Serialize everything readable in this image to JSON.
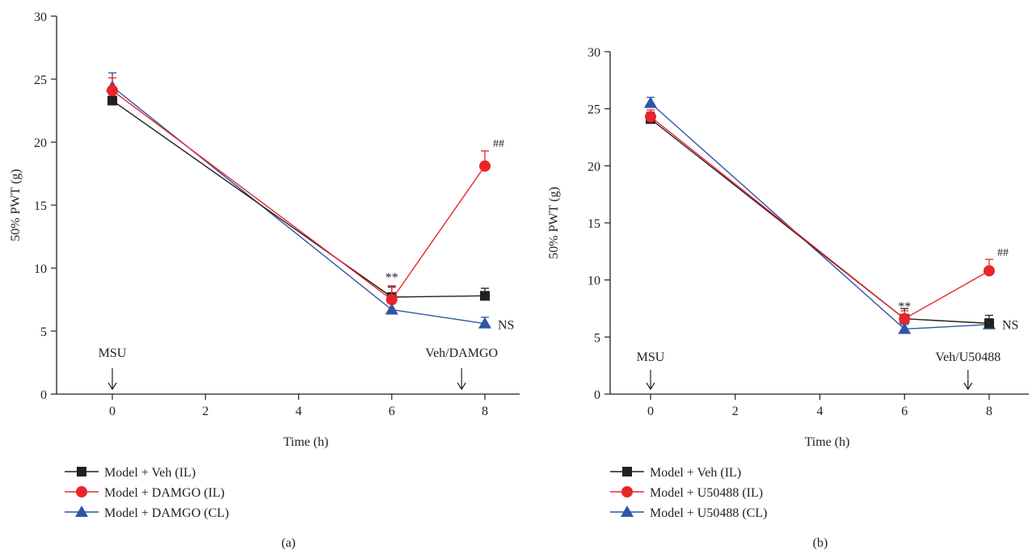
{
  "chart_data": [
    {
      "type": "line",
      "panel_label": "(a)",
      "xlabel": "Time (h)",
      "ylabel": "50% PWT (g)",
      "xlim": [
        -1,
        9
      ],
      "ylim": [
        0,
        30
      ],
      "x_ticks": [
        0,
        2,
        4,
        6,
        8
      ],
      "y_ticks": [
        0,
        5,
        10,
        15,
        20,
        25,
        30
      ],
      "x_tick_labels": [
        "0",
        "2",
        "4",
        "6",
        "8"
      ],
      "y_tick_labels": [
        "0",
        "5",
        "10",
        "15",
        "20",
        "25",
        "30"
      ],
      "grid": false,
      "legend_position": "bottom-left, below plot",
      "series": [
        {
          "name": "Model + Veh (IL)",
          "color": "#231f20",
          "marker": "square",
          "x": [
            0,
            6,
            8
          ],
          "y": [
            23.3,
            7.7,
            7.8
          ],
          "err": [
            0.7,
            0.8,
            0.6
          ]
        },
        {
          "name": "Model + DAMGO (IL)",
          "color": "#e8262a",
          "marker": "circle",
          "x": [
            0,
            6,
            8
          ],
          "y": [
            24.1,
            7.5,
            18.1
          ],
          "err": [
            1.0,
            1.1,
            1.2
          ]
        },
        {
          "name": "Model + DAMGO (CL)",
          "color": "#2f55a4",
          "marker": "triangle",
          "x": [
            0,
            6,
            8
          ],
          "y": [
            24.4,
            6.7,
            5.6
          ],
          "err": [
            1.1,
            0.5,
            0.5
          ]
        }
      ],
      "annotations": [
        {
          "text": "MSU",
          "x": 0,
          "role": "arrow-label"
        },
        {
          "text": "Veh/DAMGO",
          "x": 7.5,
          "role": "arrow-label"
        },
        {
          "text": "**",
          "x": 6,
          "y": 9.2,
          "role": "significance"
        },
        {
          "text": "##",
          "x": 8,
          "y": 19.6,
          "role": "significance"
        },
        {
          "text": "NS",
          "x": 8,
          "y": 5.6,
          "role": "significance"
        }
      ]
    },
    {
      "type": "line",
      "panel_label": "(b)",
      "xlabel": "Time (h)",
      "ylabel": "50% PWT (g)",
      "xlim": [
        -1,
        9
      ],
      "ylim": [
        0,
        30
      ],
      "x_ticks": [
        0,
        2,
        4,
        6,
        8
      ],
      "y_ticks": [
        0,
        5,
        10,
        15,
        20,
        25,
        30
      ],
      "x_tick_labels": [
        "0",
        "2",
        "4",
        "6",
        "8"
      ],
      "y_tick_labels": [
        "0",
        "5",
        "10",
        "15",
        "20",
        "25",
        "30"
      ],
      "grid": false,
      "legend_position": "bottom-left, below plot",
      "series": [
        {
          "name": "Model + Veh (IL)",
          "color": "#231f20",
          "marker": "square",
          "x": [
            0,
            6,
            8
          ],
          "y": [
            24.1,
            6.6,
            6.2
          ],
          "err": [
            0.6,
            0.9,
            0.7
          ]
        },
        {
          "name": "Model + U50488 (IL)",
          "color": "#e8262a",
          "marker": "circle",
          "x": [
            0,
            6,
            8
          ],
          "y": [
            24.3,
            6.6,
            10.8
          ],
          "err": [
            0.6,
            0.7,
            1.0
          ]
        },
        {
          "name": "Model + U50488 (CL)",
          "color": "#2f55a4",
          "marker": "triangle",
          "x": [
            0,
            6,
            8
          ],
          "y": [
            25.5,
            5.7,
            6.1
          ],
          "err": [
            0.5,
            0.4,
            0.5
          ]
        }
      ],
      "annotations": [
        {
          "text": "MSU",
          "x": 0,
          "role": "arrow-label"
        },
        {
          "text": "Veh/U50488",
          "x": 7.5,
          "role": "arrow-label"
        },
        {
          "text": "**",
          "x": 6,
          "y": 7.6,
          "role": "significance"
        },
        {
          "text": "##",
          "x": 8,
          "y": 12.1,
          "role": "significance"
        },
        {
          "text": "NS",
          "x": 8,
          "y": 6.2,
          "role": "significance"
        }
      ]
    }
  ]
}
